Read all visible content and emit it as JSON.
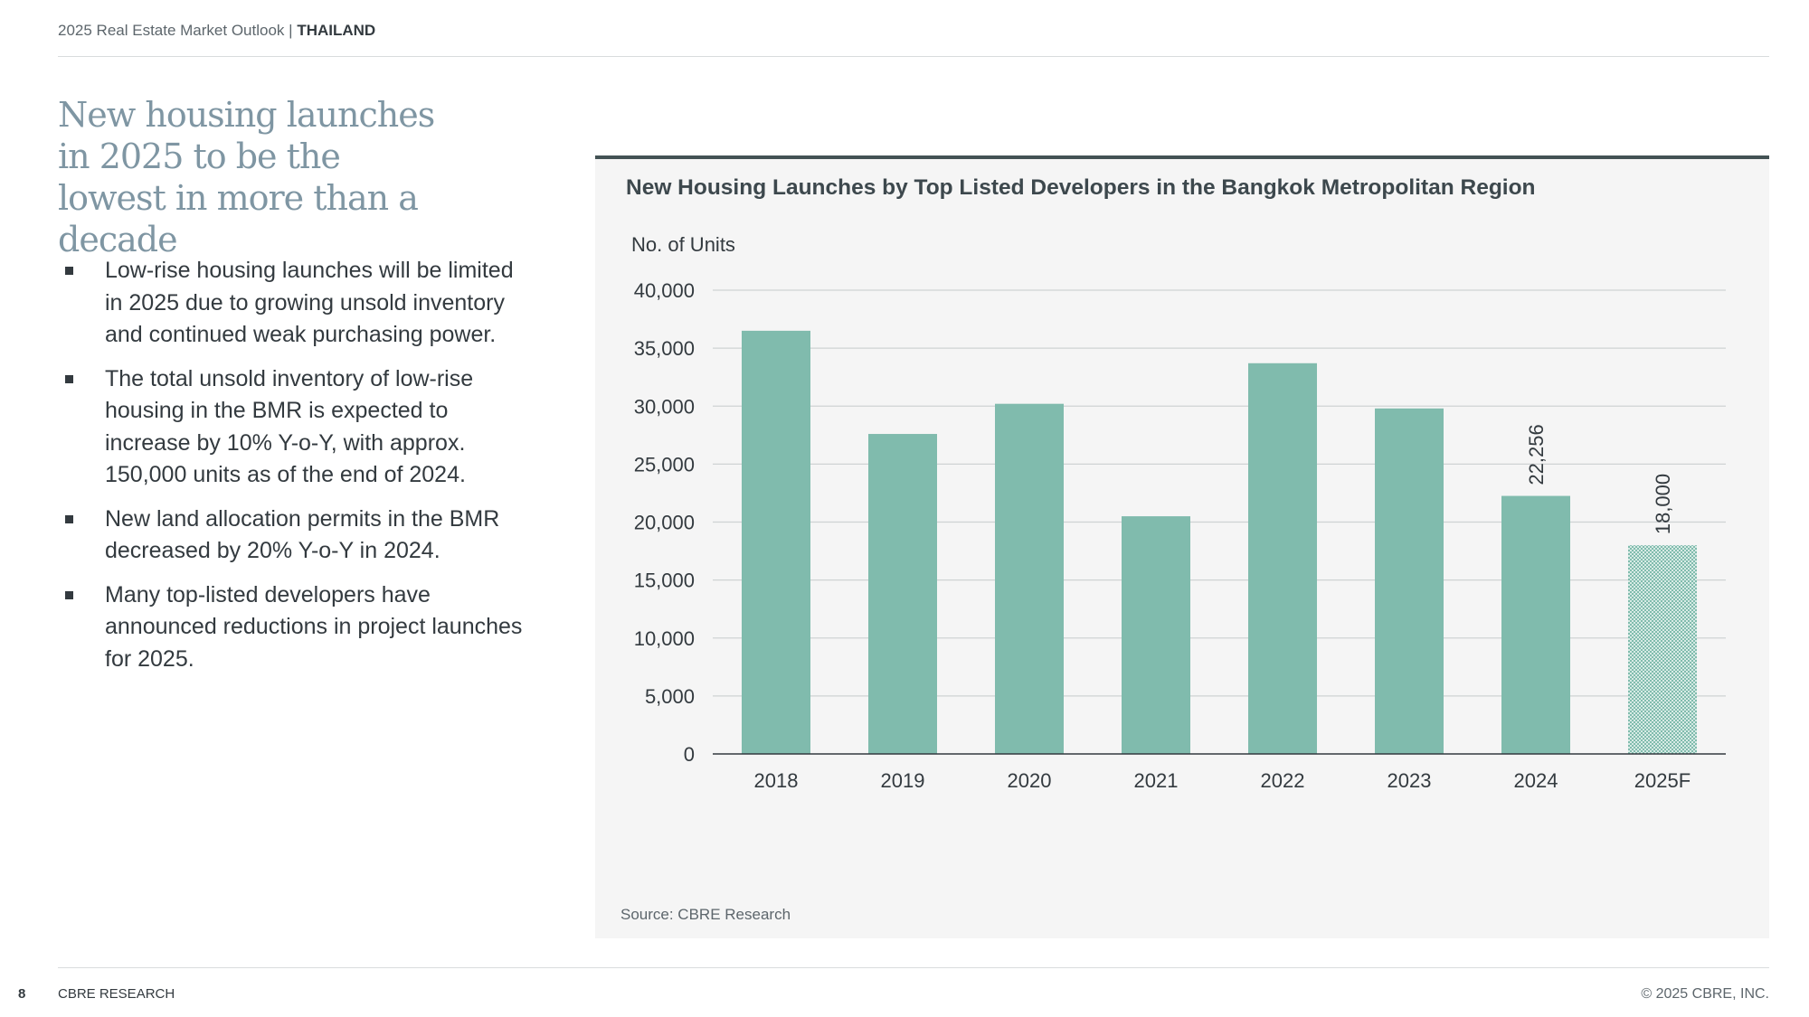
{
  "header": {
    "report": "2025 Real Estate Market Outlook",
    "separator": "|",
    "country": "THAILAND"
  },
  "headline": "New housing launches in 2025 to be the lowest in more than a decade",
  "bullets": [
    "Low-rise housing launches will be limited in 2025 due to growing unsold inventory and continued weak purchasing power.",
    "The total unsold inventory of low-rise housing in the BMR is expected to increase by 10% Y-o-Y, with approx. 150,000 units as of the end of 2024.",
    "New land allocation permits in the BMR decreased by 20% Y-o-Y in 2024.",
    "Many top-listed developers have announced reductions in project launches for 2025."
  ],
  "chart_data": {
    "type": "bar",
    "title": "New Housing Launches by Top Listed Developers in the Bangkok Metropolitan Region",
    "ylabel": "No. of Units",
    "xlabel": "",
    "categories": [
      "2018",
      "2019",
      "2020",
      "2021",
      "2022",
      "2023",
      "2024",
      "2025F"
    ],
    "values": [
      36500,
      27600,
      30200,
      20500,
      33700,
      29800,
      22256,
      18000
    ],
    "data_labels": [
      "",
      "",
      "",
      "",
      "",
      "",
      "22,256",
      "18,000"
    ],
    "forecast_index": 7,
    "ylim": [
      0,
      40000
    ],
    "yticks": [
      0,
      5000,
      10000,
      15000,
      20000,
      25000,
      30000,
      35000,
      40000
    ],
    "ytick_labels": [
      "0",
      "5,000",
      "10,000",
      "15,000",
      "20,000",
      "25,000",
      "30,000",
      "35,000",
      "40,000"
    ],
    "grid": true,
    "bar_color": "#80bbad"
  },
  "source": "Source: CBRE Research",
  "footer": {
    "page_number": "8",
    "left": "CBRE RESEARCH",
    "right": "© 2025 CBRE, INC."
  }
}
